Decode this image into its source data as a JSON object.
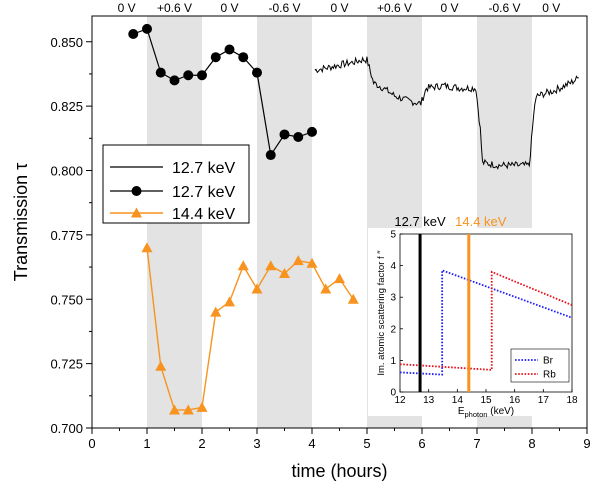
{
  "chart_data": [
    {
      "type": "line",
      "xlabel": "time (hours)",
      "ylabel": "Transmission τ",
      "xlim": [
        0,
        9
      ],
      "ylim": [
        0.7,
        0.86
      ],
      "xticks": [
        "0",
        "1",
        "2",
        "3",
        "4",
        "5",
        "6",
        "7",
        "8",
        "9"
      ],
      "yticks": [
        "0.700",
        "0.725",
        "0.750",
        "0.775",
        "0.800",
        "0.825",
        "0.850"
      ],
      "grid": false,
      "legend_position": "left",
      "shaded_intervals": [
        [
          1,
          2
        ],
        [
          3,
          4
        ],
        [
          5,
          6
        ],
        [
          7,
          8
        ]
      ],
      "voltage_labels": [
        {
          "x": 0.63,
          "label": "0 V"
        },
        {
          "x": 1.5,
          "label": "+0.6 V"
        },
        {
          "x": 2.5,
          "label": "0 V"
        },
        {
          "x": 3.5,
          "label": "-0.6 V"
        },
        {
          "x": 4.5,
          "label": "0 V"
        },
        {
          "x": 5.5,
          "label": "+0.6 V"
        },
        {
          "x": 6.5,
          "label": "0 V"
        },
        {
          "x": 7.5,
          "label": "-0.6 V"
        },
        {
          "x": 8.35,
          "label": "0 V"
        }
      ],
      "series": [
        {
          "name": "12.7 keV",
          "style": "line",
          "color": "#000000",
          "segments": [
            [
              [
                4.05,
                0.839
              ],
              [
                4.3,
                0.84
              ],
              [
                4.5,
                0.841
              ],
              [
                4.75,
                0.842
              ],
              [
                4.92,
                0.843
              ],
              [
                5.0,
                0.843
              ],
              [
                5.12,
                0.834
              ],
              [
                5.3,
                0.832
              ],
              [
                5.5,
                0.829
              ],
              [
                5.75,
                0.827
              ],
              [
                5.98,
                0.826
              ],
              [
                6.08,
                0.832
              ],
              [
                6.4,
                0.833
              ],
              [
                6.7,
                0.832
              ],
              [
                6.98,
                0.832
              ],
              [
                7.06,
                0.816
              ],
              [
                7.1,
                0.803
              ],
              [
                7.4,
                0.802
              ],
              [
                7.7,
                0.802
              ],
              [
                7.95,
                0.802
              ],
              [
                8.05,
                0.826
              ],
              [
                8.1,
                0.829
              ],
              [
                8.4,
                0.831
              ],
              [
                8.7,
                0.834
              ],
              [
                8.85,
                0.836
              ]
            ]
          ]
        },
        {
          "name": "12.7 keV",
          "style": "line-marker-circle",
          "color": "#000000",
          "x": [
            0.75,
            1.0,
            1.25,
            1.5,
            1.75,
            2.0,
            2.25,
            2.5,
            2.75,
            3.0,
            3.25,
            3.5,
            3.75,
            4.0
          ],
          "y": [
            0.853,
            0.855,
            0.838,
            0.835,
            0.837,
            0.837,
            0.844,
            0.847,
            0.844,
            0.838,
            0.806,
            0.814,
            0.813,
            0.815
          ]
        },
        {
          "name": "14.4 keV",
          "style": "line-marker-triangle",
          "color": "#f7931e",
          "x": [
            1.0,
            1.25,
            1.5,
            1.75,
            2.0,
            2.25,
            2.5,
            2.75,
            3.0,
            3.25,
            3.5,
            3.75,
            4.0,
            4.25,
            4.5,
            4.75
          ],
          "y": [
            0.77,
            0.724,
            0.707,
            0.707,
            0.708,
            0.745,
            0.749,
            0.763,
            0.754,
            0.763,
            0.76,
            0.765,
            0.764,
            0.754,
            0.758,
            0.75
          ]
        }
      ]
    },
    {
      "type": "line",
      "xlabel": "E",
      "xlabel_sub": "photon",
      "xlabel_unit": " (keV)",
      "ylabel": "Im. atomic scattering factor f ″",
      "xlim": [
        12,
        18
      ],
      "ylim": [
        0,
        5
      ],
      "xticks": [
        "12",
        "13",
        "14",
        "15",
        "16",
        "17",
        "18"
      ],
      "yticks": [
        "0",
        "1",
        "2",
        "3",
        "4",
        "5"
      ],
      "legend_position": "bottom-right",
      "markers": [
        {
          "x": 12.7,
          "label": "12.7 keV",
          "color": "#000000"
        },
        {
          "x": 14.4,
          "label": "14.4 keV",
          "color": "#f7931e"
        }
      ],
      "series": [
        {
          "name": "Br",
          "color": "#1f1fff",
          "x": [
            12.0,
            13.47,
            13.47,
            18.0
          ],
          "y": [
            0.62,
            0.55,
            3.85,
            2.35
          ]
        },
        {
          "name": "Rb",
          "color": "#e8101a",
          "x": [
            12.0,
            15.2,
            15.2,
            18.0
          ],
          "y": [
            0.88,
            0.7,
            3.8,
            2.75
          ]
        }
      ]
    }
  ]
}
